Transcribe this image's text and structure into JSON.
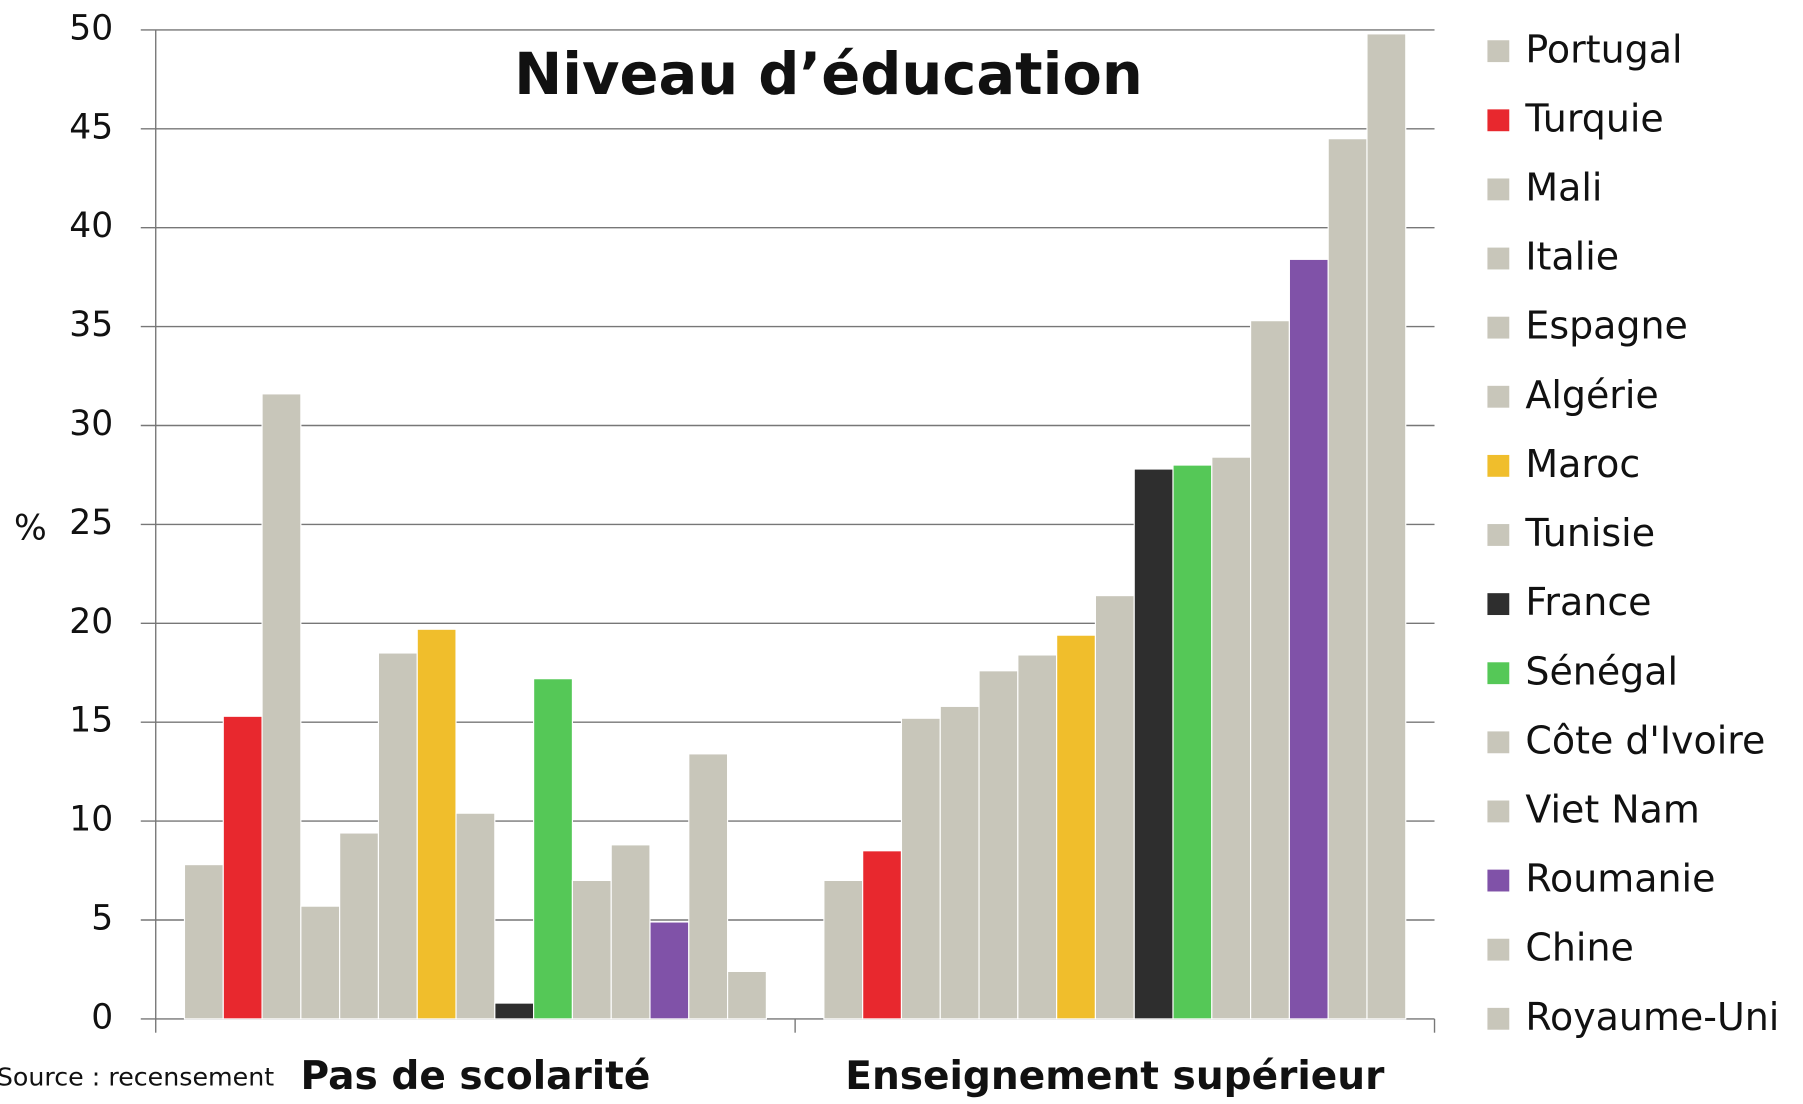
{
  "chart_data": {
    "type": "bar",
    "title": "Niveau d’éducation",
    "y_label": "%",
    "source": "Source : recensement",
    "categories": [
      "Pas de scolarité",
      "Enseignement supérieur"
    ],
    "series": [
      {
        "name": "Portugal",
        "color": "#c8c6ba",
        "values": [
          7.8,
          7.0
        ]
      },
      {
        "name": "Turquie",
        "color": "#e8282e",
        "values": [
          15.3,
          8.5
        ]
      },
      {
        "name": "Mali",
        "color": "#c8c6ba",
        "values": [
          31.6,
          15.2
        ]
      },
      {
        "name": "Italie",
        "color": "#c8c6ba",
        "values": [
          5.7,
          15.8
        ]
      },
      {
        "name": "Espagne",
        "color": "#c8c6ba",
        "values": [
          9.4,
          17.6
        ]
      },
      {
        "name": "Algérie",
        "color": "#c8c6ba",
        "values": [
          18.5,
          18.4
        ]
      },
      {
        "name": "Maroc",
        "color": "#f0be2c",
        "values": [
          19.7,
          19.4
        ]
      },
      {
        "name": "Tunisie",
        "color": "#c8c6ba",
        "values": [
          10.4,
          21.4
        ]
      },
      {
        "name": "France",
        "color": "#2e2e2e",
        "values": [
          0.8,
          27.8
        ]
      },
      {
        "name": "Sénégal",
        "color": "#55c857",
        "values": [
          17.2,
          28.0
        ]
      },
      {
        "name": "Côte d'Ivoire",
        "color": "#c8c6ba",
        "values": [
          7.0,
          28.4
        ]
      },
      {
        "name": "Viet Nam",
        "color": "#c8c6ba",
        "values": [
          8.8,
          35.3
        ]
      },
      {
        "name": "Roumanie",
        "color": "#8052a8",
        "values": [
          4.9,
          38.4
        ]
      },
      {
        "name": "Chine",
        "color": "#c8c6ba",
        "values": [
          13.4,
          44.5
        ]
      },
      {
        "name": "Royaume-Uni",
        "color": "#c8c6ba",
        "values": [
          2.4,
          49.8
        ]
      }
    ],
    "ylim": [
      0,
      50
    ],
    "yticks": [
      0,
      5,
      10,
      15,
      20,
      25,
      30,
      35,
      40,
      45,
      50
    ],
    "grid": true,
    "legend": "right"
  }
}
